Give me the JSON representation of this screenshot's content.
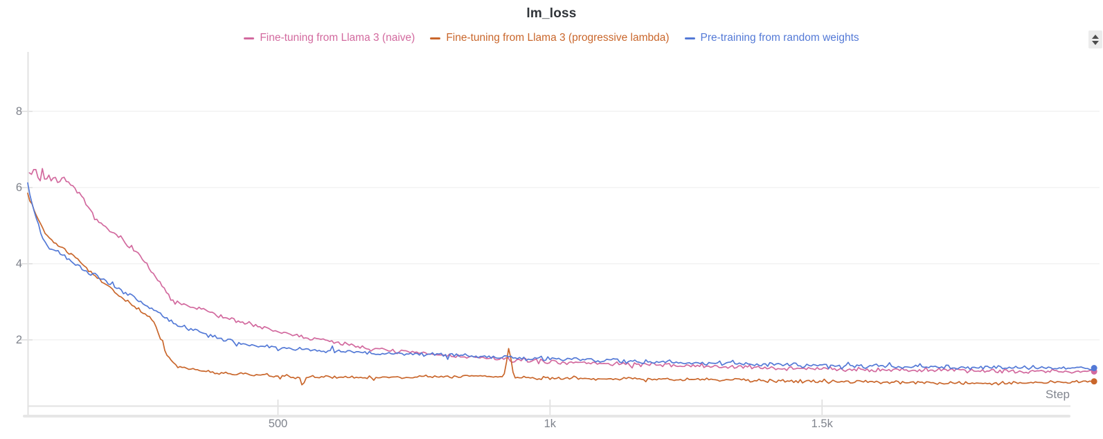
{
  "panel": {
    "title": "lm_loss",
    "scroll_stepper": {
      "up_icon": "up-arrow",
      "down_icon": "down-arrow"
    }
  },
  "chart_data": {
    "type": "line",
    "title": "lm_loss",
    "xlabel": "Step",
    "ylabel": "",
    "xlim": [
      40,
      2010
    ],
    "ylim": [
      0.27,
      9.56
    ],
    "grid": "horizontal-only",
    "legend_position": "top-center",
    "x_ticks": [
      {
        "value": 500,
        "label": "500"
      },
      {
        "value": 1000,
        "label": "1k"
      },
      {
        "value": 1500,
        "label": "1.5k"
      }
    ],
    "y_ticks": [
      {
        "value": 2,
        "label": "2"
      },
      {
        "value": 4,
        "label": "4"
      },
      {
        "value": 6,
        "label": "6"
      },
      {
        "value": 8,
        "label": "8"
      }
    ],
    "series": [
      {
        "name": "Fine-tuning from Llama 3 (naive)",
        "color": "#D2699E",
        "noise_amplitude": 0.07,
        "end_marker": true,
        "points": [
          [
            43,
            6.45
          ],
          [
            48,
            6.3
          ],
          [
            53,
            6.62
          ],
          [
            58,
            6.25
          ],
          [
            63,
            6.2
          ],
          [
            67,
            6.48
          ],
          [
            72,
            6.15
          ],
          [
            78,
            6.38
          ],
          [
            84,
            6.12
          ],
          [
            90,
            6.3
          ],
          [
            97,
            6.12
          ],
          [
            104,
            6.28
          ],
          [
            112,
            6.18
          ],
          [
            120,
            6.05
          ],
          [
            130,
            5.9
          ],
          [
            140,
            5.72
          ],
          [
            152,
            5.45
          ],
          [
            165,
            5.2
          ],
          [
            178,
            5.0
          ],
          [
            192,
            4.85
          ],
          [
            205,
            4.72
          ],
          [
            212,
            4.68
          ],
          [
            225,
            4.5
          ],
          [
            240,
            4.3
          ],
          [
            255,
            4.05
          ],
          [
            270,
            3.75
          ],
          [
            285,
            3.45
          ],
          [
            295,
            3.25
          ],
          [
            307,
            3.0
          ],
          [
            320,
            2.95
          ],
          [
            335,
            2.88
          ],
          [
            350,
            2.82
          ],
          [
            371,
            2.76
          ],
          [
            390,
            2.65
          ],
          [
            410,
            2.55
          ],
          [
            434,
            2.48
          ],
          [
            455,
            2.38
          ],
          [
            475,
            2.3
          ],
          [
            499,
            2.22
          ],
          [
            520,
            2.15
          ],
          [
            540,
            2.1
          ],
          [
            562,
            2.03
          ],
          [
            590,
            1.97
          ],
          [
            626,
            1.9
          ],
          [
            658,
            1.8
          ],
          [
            690,
            1.74
          ],
          [
            720,
            1.7
          ],
          [
            753,
            1.66
          ],
          [
            785,
            1.62
          ],
          [
            817,
            1.58
          ],
          [
            850,
            1.55
          ],
          [
            880,
            1.52
          ],
          [
            915,
            1.49
          ],
          [
            950,
            1.46
          ],
          [
            1010,
            1.42
          ],
          [
            1070,
            1.39
          ],
          [
            1130,
            1.37
          ],
          [
            1200,
            1.34
          ],
          [
            1260,
            1.32
          ],
          [
            1330,
            1.29
          ],
          [
            1390,
            1.27
          ],
          [
            1460,
            1.25
          ],
          [
            1520,
            1.24
          ],
          [
            1580,
            1.22
          ],
          [
            1640,
            1.21
          ],
          [
            1700,
            1.2
          ],
          [
            1770,
            1.19
          ],
          [
            1840,
            1.18
          ],
          [
            1900,
            1.18
          ],
          [
            1960,
            1.17
          ],
          [
            2000,
            1.17
          ]
        ]
      },
      {
        "name": "Fine-tuning from Llama 3 (progressive lambda)",
        "color": "#C9662B",
        "noise_amplitude": 0.05,
        "end_marker": true,
        "points": [
          [
            40,
            5.8
          ],
          [
            46,
            5.6
          ],
          [
            53,
            5.38
          ],
          [
            60,
            5.15
          ],
          [
            68,
            4.92
          ],
          [
            76,
            4.72
          ],
          [
            85,
            4.58
          ],
          [
            95,
            4.48
          ],
          [
            105,
            4.4
          ],
          [
            115,
            4.3
          ],
          [
            125,
            4.18
          ],
          [
            135,
            4.05
          ],
          [
            145,
            3.92
          ],
          [
            158,
            3.75
          ],
          [
            170,
            3.6
          ],
          [
            182,
            3.47
          ],
          [
            195,
            3.32
          ],
          [
            208,
            3.18
          ],
          [
            220,
            3.05
          ],
          [
            232,
            2.92
          ],
          [
            244,
            2.8
          ],
          [
            256,
            2.68
          ],
          [
            266,
            2.55
          ],
          [
            274,
            2.4
          ],
          [
            282,
            2.1
          ],
          [
            290,
            1.8
          ],
          [
            298,
            1.55
          ],
          [
            307,
            1.38
          ],
          [
            318,
            1.3
          ],
          [
            330,
            1.26
          ],
          [
            345,
            1.22
          ],
          [
            360,
            1.18
          ],
          [
            371,
            1.16
          ],
          [
            390,
            1.13
          ],
          [
            410,
            1.12
          ],
          [
            434,
            1.1
          ],
          [
            460,
            1.08
          ],
          [
            490,
            1.06
          ],
          [
            520,
            1.05
          ],
          [
            540,
            1.03
          ],
          [
            545,
            0.8
          ],
          [
            552,
            1.03
          ],
          [
            580,
            1.02
          ],
          [
            640,
            1.02
          ],
          [
            680,
            1.01
          ],
          [
            720,
            1.02
          ],
          [
            760,
            1.03
          ],
          [
            800,
            1.04
          ],
          [
            840,
            1.05
          ],
          [
            880,
            1.06
          ],
          [
            915,
            1.02
          ],
          [
            925,
            1.85
          ],
          [
            933,
            1.02
          ],
          [
            960,
            1.0
          ],
          [
            1000,
            1.0
          ],
          [
            1050,
            0.99
          ],
          [
            1100,
            0.98
          ],
          [
            1150,
            0.97
          ],
          [
            1200,
            0.97
          ],
          [
            1260,
            0.96
          ],
          [
            1330,
            0.95
          ],
          [
            1390,
            0.93
          ],
          [
            1460,
            0.92
          ],
          [
            1520,
            0.9
          ],
          [
            1580,
            0.9
          ],
          [
            1640,
            0.89
          ],
          [
            1700,
            0.88
          ],
          [
            1770,
            0.86
          ],
          [
            1840,
            0.86
          ],
          [
            1900,
            0.88
          ],
          [
            1960,
            0.9
          ],
          [
            2000,
            0.91
          ]
        ]
      },
      {
        "name": "Pre-training from random weights",
        "color": "#5379D6",
        "noise_amplitude": 0.065,
        "end_marker": true,
        "points": [
          [
            40,
            6.12
          ],
          [
            45,
            5.75
          ],
          [
            50,
            5.5
          ],
          [
            56,
            5.2
          ],
          [
            62,
            4.9
          ],
          [
            68,
            4.68
          ],
          [
            75,
            4.52
          ],
          [
            82,
            4.42
          ],
          [
            90,
            4.35
          ],
          [
            100,
            4.28
          ],
          [
            110,
            4.18
          ],
          [
            120,
            4.05
          ],
          [
            135,
            3.92
          ],
          [
            150,
            3.78
          ],
          [
            165,
            3.68
          ],
          [
            180,
            3.55
          ],
          [
            195,
            3.45
          ],
          [
            210,
            3.32
          ],
          [
            225,
            3.2
          ],
          [
            240,
            3.08
          ],
          [
            255,
            2.95
          ],
          [
            270,
            2.82
          ],
          [
            285,
            2.68
          ],
          [
            295,
            2.58
          ],
          [
            307,
            2.45
          ],
          [
            320,
            2.38
          ],
          [
            335,
            2.3
          ],
          [
            350,
            2.22
          ],
          [
            371,
            2.12
          ],
          [
            390,
            2.05
          ],
          [
            410,
            1.98
          ],
          [
            434,
            1.92
          ],
          [
            455,
            1.87
          ],
          [
            475,
            1.83
          ],
          [
            499,
            1.8
          ],
          [
            530,
            1.76
          ],
          [
            562,
            1.74
          ],
          [
            600,
            1.7
          ],
          [
            626,
            1.68
          ],
          [
            660,
            1.66
          ],
          [
            690,
            1.65
          ],
          [
            720,
            1.64
          ],
          [
            753,
            1.63
          ],
          [
            785,
            1.61
          ],
          [
            817,
            1.6
          ],
          [
            850,
            1.57
          ],
          [
            880,
            1.55
          ],
          [
            915,
            1.53
          ],
          [
            950,
            1.52
          ],
          [
            1010,
            1.5
          ],
          [
            1070,
            1.47
          ],
          [
            1130,
            1.45
          ],
          [
            1200,
            1.42
          ],
          [
            1260,
            1.4
          ],
          [
            1330,
            1.38
          ],
          [
            1390,
            1.36
          ],
          [
            1460,
            1.34
          ],
          [
            1520,
            1.33
          ],
          [
            1580,
            1.31
          ],
          [
            1640,
            1.3
          ],
          [
            1700,
            1.29
          ],
          [
            1770,
            1.28
          ],
          [
            1840,
            1.27
          ],
          [
            1900,
            1.27
          ],
          [
            1960,
            1.26
          ],
          [
            2000,
            1.26
          ]
        ]
      }
    ]
  }
}
